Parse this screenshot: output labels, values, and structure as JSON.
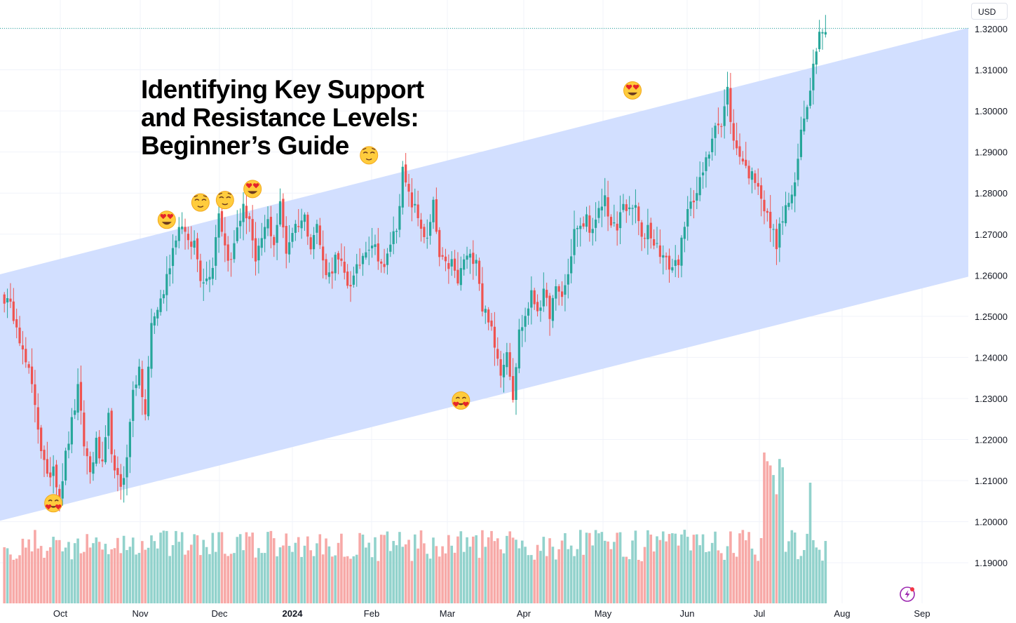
{
  "headline": {
    "line1": "Identifying Key Support",
    "line2": "and Resistance Levels:",
    "line3": "Beginner’s Guide"
  },
  "currency_button": "USD",
  "colors": {
    "up": "#26a69a",
    "down": "#ef5350",
    "vol_up": "#92d2cc",
    "vol_down": "#f7a9a7",
    "channel_fill": "#d2dfff",
    "grid": "#f0f3fa"
  },
  "chart_data": {
    "type": "candlestick",
    "symbol_quote": "USD",
    "ylim": [
      1.183,
      1.3265
    ],
    "y_ticks": [
      "1.32000",
      "1.31000",
      "1.30000",
      "1.29000",
      "1.28000",
      "1.27000",
      "1.26000",
      "1.25000",
      "1.24000",
      "1.23000",
      "1.22000",
      "1.21000",
      "1.20000",
      "1.19000"
    ],
    "x_ticks": [
      "Oct",
      "Nov",
      "Dec",
      "2024",
      "Feb",
      "Mar",
      "Apr",
      "May",
      "Jun",
      "Jul",
      "Aug",
      "Sep"
    ],
    "last_price_line": 1.3201,
    "channel": {
      "upper": [
        [
          0,
          1.2605
        ],
        [
          275,
          1.3127
        ]
      ],
      "lower": [
        [
          0,
          1.2005
        ],
        [
          275,
          1.2522
        ]
      ]
    },
    "close_anchors": [
      [
        0,
        1.2545
      ],
      [
        2,
        1.252
      ],
      [
        4,
        1.249
      ],
      [
        6,
        1.241
      ],
      [
        8,
        1.236
      ],
      [
        10,
        1.229
      ],
      [
        12,
        1.218
      ],
      [
        14,
        1.21
      ],
      [
        16,
        1.214
      ],
      [
        18,
        1.206
      ],
      [
        20,
        1.216
      ],
      [
        22,
        1.224
      ],
      [
        24,
        1.232
      ],
      [
        26,
        1.219
      ],
      [
        28,
        1.212
      ],
      [
        30,
        1.219
      ],
      [
        32,
        1.213
      ],
      [
        34,
        1.225
      ],
      [
        36,
        1.211
      ],
      [
        38,
        1.209
      ],
      [
        40,
        1.215
      ],
      [
        42,
        1.233
      ],
      [
        44,
        1.236
      ],
      [
        46,
        1.226
      ],
      [
        48,
        1.248
      ],
      [
        50,
        1.252
      ],
      [
        52,
        1.256
      ],
      [
        54,
        1.263
      ],
      [
        56,
        1.27
      ],
      [
        58,
        1.273
      ],
      [
        60,
        1.267
      ],
      [
        62,
        1.268
      ],
      [
        64,
        1.26
      ],
      [
        66,
        1.259
      ],
      [
        68,
        1.263
      ],
      [
        70,
        1.276
      ],
      [
        72,
        1.267
      ],
      [
        74,
        1.263
      ],
      [
        76,
        1.272
      ],
      [
        78,
        1.276
      ],
      [
        80,
        1.274
      ],
      [
        82,
        1.262
      ],
      [
        84,
        1.269
      ],
      [
        86,
        1.273
      ],
      [
        88,
        1.268
      ],
      [
        90,
        1.277
      ],
      [
        92,
        1.266
      ],
      [
        94,
        1.271
      ],
      [
        96,
        1.273
      ],
      [
        98,
        1.274
      ],
      [
        100,
        1.268
      ],
      [
        102,
        1.272
      ],
      [
        104,
        1.263
      ],
      [
        106,
        1.26
      ],
      [
        108,
        1.264
      ],
      [
        110,
        1.262
      ],
      [
        112,
        1.258
      ],
      [
        114,
        1.259
      ],
      [
        116,
        1.263
      ],
      [
        118,
        1.267
      ],
      [
        120,
        1.268
      ],
      [
        122,
        1.265
      ],
      [
        124,
        1.261
      ],
      [
        126,
        1.268
      ],
      [
        128,
        1.272
      ],
      [
        130,
        1.285
      ],
      [
        132,
        1.279
      ],
      [
        134,
        1.276
      ],
      [
        136,
        1.272
      ],
      [
        138,
        1.268
      ],
      [
        140,
        1.277
      ],
      [
        142,
        1.264
      ],
      [
        144,
        1.262
      ],
      [
        146,
        1.263
      ],
      [
        148,
        1.258
      ],
      [
        150,
        1.264
      ],
      [
        152,
        1.264
      ],
      [
        154,
        1.265
      ],
      [
        156,
        1.252
      ],
      [
        158,
        1.25
      ],
      [
        160,
        1.242
      ],
      [
        162,
        1.237
      ],
      [
        164,
        1.242
      ],
      [
        166,
        1.231
      ],
      [
        168,
        1.246
      ],
      [
        170,
        1.25
      ],
      [
        172,
        1.255
      ],
      [
        174,
        1.252
      ],
      [
        176,
        1.255
      ],
      [
        178,
        1.251
      ],
      [
        180,
        1.256
      ],
      [
        182,
        1.255
      ],
      [
        184,
        1.26
      ],
      [
        186,
        1.271
      ],
      [
        188,
        1.271
      ],
      [
        190,
        1.274
      ],
      [
        192,
        1.27
      ],
      [
        194,
        1.275
      ],
      [
        196,
        1.279
      ],
      [
        198,
        1.272
      ],
      [
        200,
        1.271
      ],
      [
        202,
        1.278
      ],
      [
        204,
        1.275
      ],
      [
        206,
        1.277
      ],
      [
        208,
        1.268
      ],
      [
        210,
        1.272
      ],
      [
        212,
        1.268
      ],
      [
        214,
        1.266
      ],
      [
        216,
        1.263
      ],
      [
        218,
        1.262
      ],
      [
        220,
        1.264
      ],
      [
        222,
        1.271
      ],
      [
        224,
        1.279
      ],
      [
        226,
        1.28
      ],
      [
        228,
        1.285
      ],
      [
        230,
        1.29
      ],
      [
        232,
        1.298
      ],
      [
        234,
        1.296
      ],
      [
        236,
        1.305
      ],
      [
        238,
        1.292
      ],
      [
        240,
        1.29
      ],
      [
        242,
        1.286
      ],
      [
        244,
        1.284
      ],
      [
        246,
        1.283
      ],
      [
        248,
        1.276
      ],
      [
        250,
        1.272
      ],
      [
        252,
        1.268
      ],
      [
        254,
        1.274
      ],
      [
        256,
        1.278
      ],
      [
        258,
        1.281
      ],
      [
        260,
        1.295
      ],
      [
        262,
        1.302
      ],
      [
        264,
        1.311
      ],
      [
        266,
        1.321
      ],
      [
        268,
        1.3192
      ]
    ],
    "markers": [
      {
        "type": "love-bottom",
        "index": 16,
        "price": 1.2045
      },
      {
        "type": "heart-eyes",
        "index": 53,
        "price": 1.2735
      },
      {
        "type": "relieved",
        "index": 64,
        "price": 1.2777
      },
      {
        "type": "relieved",
        "index": 72,
        "price": 1.2783
      },
      {
        "type": "heart-eyes",
        "index": 81,
        "price": 1.281
      },
      {
        "type": "relieved",
        "index": 119,
        "price": 1.2892
      },
      {
        "type": "love-bottom",
        "index": 149,
        "price": 1.2295
      },
      {
        "type": "heart-eyes",
        "index": 205,
        "price": 1.305
      }
    ]
  }
}
